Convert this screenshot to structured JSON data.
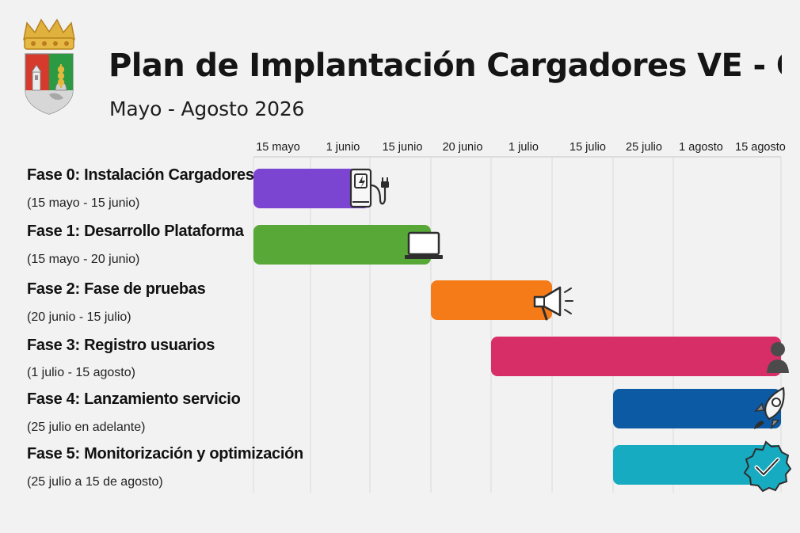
{
  "header": {
    "title": "Plan de Implantación Cargadores VE - Quer",
    "subtitle": "Mayo - Agosto 2026"
  },
  "colors": {
    "background": "#f2f2f2",
    "grid": "#d9d9d9",
    "phase0": "#7b44d1",
    "phase1": "#58a837",
    "phase2": "#f57a18",
    "phase3": "#d72e67",
    "phase4": "#0c5aa3",
    "phase5": "#17abc1"
  },
  "chart_data": {
    "type": "gantt",
    "title": "Plan de Implantación Cargadores VE - Quer",
    "subtitle": "Mayo - Agosto 2026",
    "x_axis": {
      "type": "date",
      "ticks": [
        "15 mayo",
        "1 junio",
        "15 junio",
        "20 junio",
        "1 julio",
        "15 julio",
        "25 julio",
        "1 agosto",
        "15 agosto"
      ],
      "tick_dates": [
        "2026-05-15",
        "2026-06-01",
        "2026-06-15",
        "2026-06-20",
        "2026-07-01",
        "2026-07-15",
        "2026-07-25",
        "2026-08-01",
        "2026-08-15"
      ],
      "grid": true
    },
    "phases": [
      {
        "label": "Fase 0: Instalación Cargadores",
        "period": "(15 mayo - 15 junio)",
        "start": "2026-05-15",
        "end": "2026-06-15",
        "color": "#7b44d1",
        "icon": "charging-station-icon"
      },
      {
        "label": "Fase 1: Desarrollo Plataforma",
        "period": "(15 mayo - 20 junio)",
        "start": "2026-05-15",
        "end": "2026-06-20",
        "color": "#58a837",
        "icon": "laptop-icon"
      },
      {
        "label": "Fase 2: Fase de pruebas",
        "period": "(20 junio - 15 julio)",
        "start": "2026-06-20",
        "end": "2026-07-15",
        "color": "#f57a18",
        "icon": "megaphone-icon"
      },
      {
        "label": "Fase 3: Registro usuarios",
        "period": "(1 julio - 15 agosto)",
        "start": "2026-07-01",
        "end": "2026-08-15",
        "color": "#d72e67",
        "icon": "user-icon"
      },
      {
        "label": "Fase 4: Lanzamiento servicio",
        "period": "(25 julio en adelante)",
        "start": "2026-07-25",
        "end": "2026-08-15",
        "color": "#0c5aa3",
        "icon": "rocket-icon"
      },
      {
        "label": "Fase 5: Monitorización y optimización",
        "period": "(25 julio a 15 de agosto)",
        "start": "2026-07-25",
        "end": "2026-08-15",
        "color": "#17abc1",
        "icon": "verified-badge-icon"
      }
    ]
  }
}
